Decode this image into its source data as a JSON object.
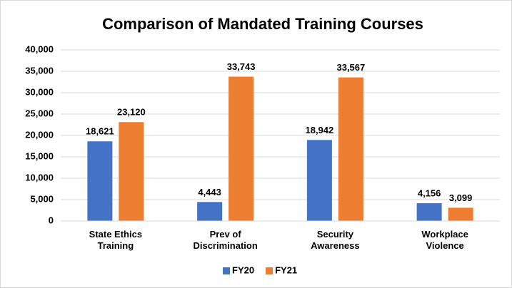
{
  "chart_data": {
    "type": "bar",
    "title": "Comparison of Mandated Training Courses",
    "categories": [
      "State Ethics Training",
      "Prev of Discrimination",
      "Security Awareness",
      "Workplace Violence"
    ],
    "series": [
      {
        "name": "FY20",
        "color": "#4472c4",
        "values": [
          18621,
          4443,
          18942,
          4156
        ],
        "value_labels": [
          "18,621",
          "4,443",
          "18,942",
          "4,156"
        ]
      },
      {
        "name": "FY21",
        "color": "#ed7d31",
        "values": [
          23120,
          33743,
          33567,
          3099
        ],
        "value_labels": [
          "23,120",
          "33,743",
          "33,567",
          "3,099"
        ]
      }
    ],
    "ylim": [
      0,
      40000
    ],
    "yticks": [
      0,
      {
        "value": 5000,
        "label": "5,000"
      },
      {
        "value": 10000,
        "label": "10,000"
      },
      {
        "value": 15000,
        "label": "15,000"
      },
      {
        "value": 20000,
        "label": "20,000"
      },
      {
        "value": 25000,
        "label": "25,000"
      },
      {
        "value": 30000,
        "label": "30,000"
      },
      {
        "value": 35000,
        "label": "35,000"
      },
      {
        "value": 40000,
        "label": "40,000"
      }
    ],
    "grid": true,
    "legend": "bottom"
  }
}
